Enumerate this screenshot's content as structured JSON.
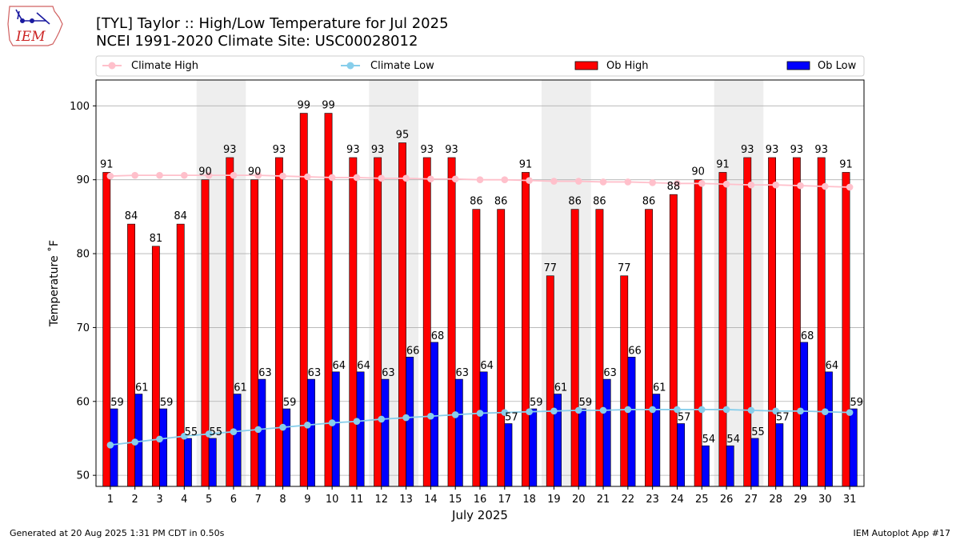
{
  "header": {
    "title_line1": "[TYL] Taylor :: High/Low Temperature for Jul 2025",
    "title_line2": "NCEI 1991-2020 Climate Site: USC00028012",
    "logo_text": "IEM"
  },
  "footer": {
    "generated": "Generated at 20 Aug 2025 1:31 PM CDT in 0.50s",
    "app": "IEM Autoplot App #17"
  },
  "colors": {
    "ob_high": "#ff0000",
    "ob_low": "#0000ff",
    "climate_high": "#ffc0cb",
    "climate_low": "#87ceeb",
    "weekend_band": "#eeeeee",
    "grid": "#b0b0b0"
  },
  "chart_data": {
    "type": "bar",
    "xlabel": "July 2025",
    "ylabel": "Temperature $^\\circ$F",
    "ylabel_display": "Temperature ˚F",
    "ylim": [
      48.5,
      103.5
    ],
    "yticks": [
      50,
      60,
      70,
      80,
      90,
      100
    ],
    "grid": true,
    "legend_position": "top",
    "categories": [
      "1",
      "2",
      "3",
      "4",
      "5",
      "6",
      "7",
      "8",
      "9",
      "10",
      "11",
      "12",
      "13",
      "14",
      "15",
      "16",
      "17",
      "18",
      "19",
      "20",
      "21",
      "22",
      "23",
      "24",
      "25",
      "26",
      "27",
      "28",
      "29",
      "30",
      "31"
    ],
    "shaded_days": [
      [
        5,
        6
      ],
      [
        12,
        13
      ],
      [
        19,
        20
      ],
      [
        26,
        27
      ]
    ],
    "series": [
      {
        "name": "Climate High",
        "kind": "line",
        "values": [
          90.5,
          90.6,
          90.6,
          90.6,
          90.6,
          90.6,
          90.6,
          90.5,
          90.4,
          90.3,
          90.3,
          90.2,
          90.2,
          90.1,
          90.1,
          90.0,
          90.0,
          89.9,
          89.8,
          89.8,
          89.7,
          89.7,
          89.6,
          89.5,
          89.5,
          89.4,
          89.3,
          89.3,
          89.2,
          89.1,
          89.0
        ]
      },
      {
        "name": "Climate Low",
        "kind": "line",
        "values": [
          54.1,
          54.5,
          54.9,
          55.3,
          55.6,
          55.9,
          56.2,
          56.5,
          56.8,
          57.1,
          57.3,
          57.6,
          57.8,
          58.0,
          58.2,
          58.4,
          58.5,
          58.6,
          58.7,
          58.8,
          58.8,
          58.9,
          58.9,
          58.9,
          58.9,
          58.9,
          58.8,
          58.7,
          58.7,
          58.6,
          58.5
        ]
      },
      {
        "name": "Ob High",
        "kind": "bar",
        "values": [
          91,
          84,
          81,
          84,
          90,
          93,
          90,
          93,
          99,
          99,
          93,
          93,
          95,
          93,
          93,
          86,
          86,
          91,
          77,
          86,
          86,
          77,
          86,
          88,
          90,
          91,
          93,
          93,
          93,
          93,
          91
        ]
      },
      {
        "name": "Ob Low",
        "kind": "bar",
        "values": [
          59,
          61,
          59,
          55,
          55,
          61,
          63,
          59,
          63,
          64,
          64,
          63,
          66,
          68,
          63,
          64,
          57,
          59,
          61,
          59,
          63,
          66,
          61,
          57,
          54,
          54,
          55,
          57,
          68,
          64,
          59
        ]
      }
    ]
  }
}
